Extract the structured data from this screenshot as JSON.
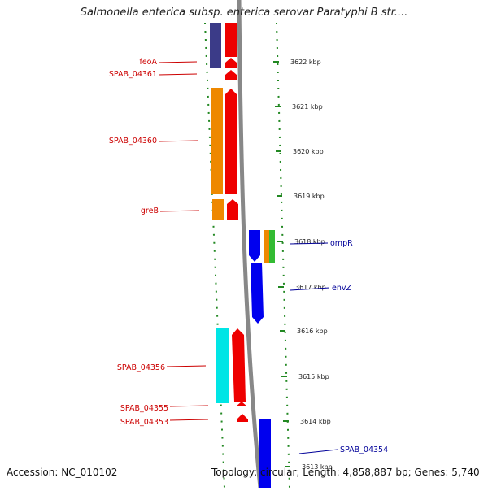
{
  "title": "Salmonella enterica subsp. enterica serovar Paratyphi B str....",
  "footer": {
    "accession": "Accession: NC_010102",
    "summary": "Topology: circular; Length: 4,858,887 bp; Genes: 5,740"
  },
  "scale_labels": [
    "3622 kbp",
    "3621 kbp",
    "3620 kbp",
    "3619 kbp",
    "3618 kbp",
    "3617 kbp",
    "3616 kbp",
    "3615 kbp",
    "3614 kbp",
    "3613 kbp"
  ],
  "left_genes": [
    "feoA",
    "SPAB_04361",
    "SPAB_04360",
    "greB",
    "SPAB_04356",
    "SPAB_04355",
    "SPAB_04353"
  ],
  "right_genes": [
    "ompR",
    "envZ",
    "SPAB_04354"
  ],
  "colors": {
    "label_left": "#cc0000",
    "label_right": "#000099",
    "red": "#ee0000",
    "purple": "#3b3b88",
    "orange": "#ee8800",
    "blue": "#0000ee",
    "cyan": "#00e5e5",
    "green": "#33bb33",
    "backbone": "#888888",
    "tick": "#228822"
  }
}
